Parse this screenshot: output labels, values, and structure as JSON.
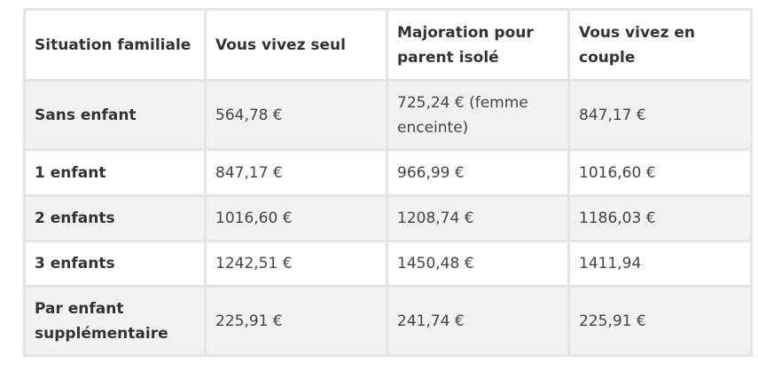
{
  "table": {
    "headers": [
      "Situation familiale",
      "Vous vivez seul",
      "Majoration pour parent isolé",
      "Vous vivez en couple"
    ],
    "rows": [
      {
        "situation": "Sans enfant",
        "seul": "564,78 €",
        "majoration": "725,24 € (femme enceinte)",
        "couple": "847,17 €"
      },
      {
        "situation": "1 enfant",
        "seul": "847,17 €",
        "majoration": "966,99 €",
        "couple": "1016,60 €"
      },
      {
        "situation": "2 enfants",
        "seul": "1016,60 €",
        "majoration": "1208,74 €",
        "couple": "1186,03 €"
      },
      {
        "situation": "3 enfants",
        "seul": "1242,51 €",
        "majoration": "1450,48 €",
        "couple": "1411,94"
      },
      {
        "situation": "Par enfant supplémentaire",
        "seul": "225,91 €",
        "majoration": "241,74 €",
        "couple": "225,91 €"
      }
    ]
  }
}
